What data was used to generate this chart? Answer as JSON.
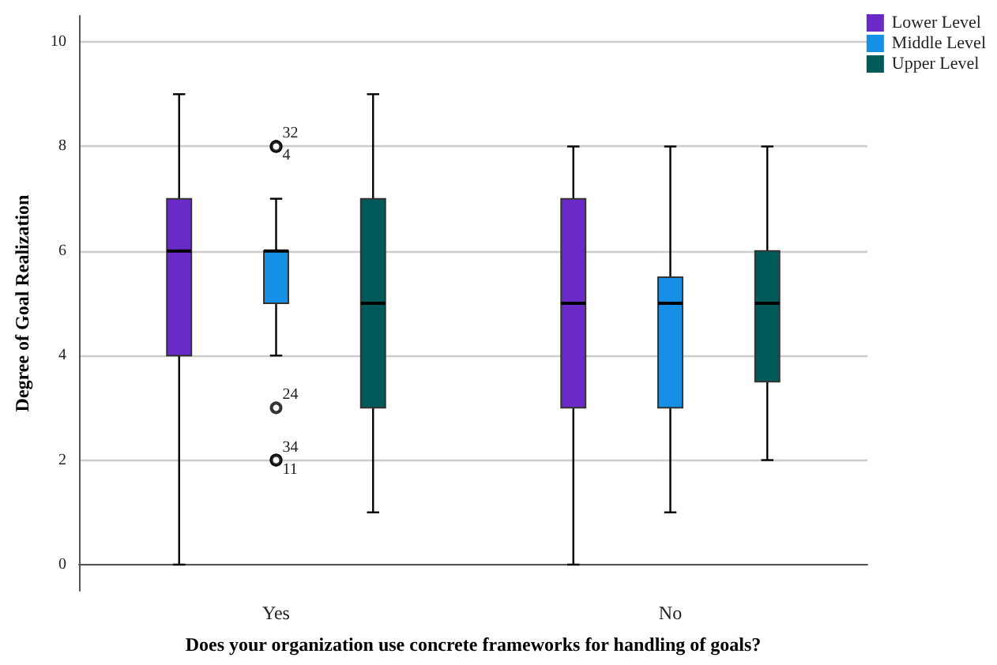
{
  "chart_data": {
    "type": "box",
    "xlabel": "Does your organization use concrete frameworks for handling of goals?",
    "ylabel": "Degree of Goal Realization",
    "categories": [
      "Yes",
      "No"
    ],
    "series": [
      {
        "name": "Lower Level",
        "color": "#6a2ac8",
        "boxes": [
          {
            "low": 0,
            "q1": 4,
            "median": 6,
            "q3": 7,
            "high": 9
          },
          {
            "low": 0,
            "q1": 3,
            "median": 5,
            "q3": 7,
            "high": 8
          }
        ]
      },
      {
        "name": "Middle Level",
        "color": "#1590e6",
        "boxes": [
          {
            "low": 4,
            "q1": 5,
            "median": 6,
            "q3": 6,
            "high": 7,
            "outliers": [
              8,
              8,
              3,
              2,
              2
            ]
          },
          {
            "low": 1,
            "q1": 3,
            "median": 5,
            "q3": 5.5,
            "high": 8
          }
        ]
      },
      {
        "name": "Upper Level",
        "color": "#005a5a",
        "boxes": [
          {
            "low": 1,
            "q1": 3,
            "median": 5,
            "q3": 7,
            "high": 9
          },
          {
            "low": 2,
            "q1": 3.5,
            "median": 5,
            "q3": 6,
            "high": 8
          }
        ]
      }
    ],
    "ylim": [
      -0.5,
      10.5
    ],
    "yticks": [
      0,
      2,
      4,
      6,
      8,
      10
    ],
    "grid": "y",
    "legend": "top right",
    "marker": "circle",
    "annotations": [
      "32",
      "4",
      "24",
      "34",
      "11"
    ]
  }
}
